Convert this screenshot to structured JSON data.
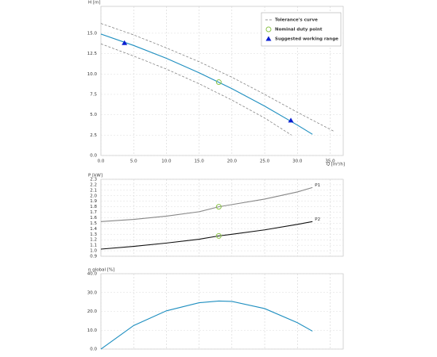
{
  "chart_data": [
    {
      "type": "line",
      "ylabel": "H [m]",
      "xlabel": "Q [m³/h]",
      "xlim": [
        0,
        37
      ],
      "ylim": [
        0,
        18.3
      ],
      "grid": true,
      "legend": "upper right",
      "xticks": [
        {
          "value": 0,
          "label": "0.0"
        },
        {
          "value": 5,
          "label": "5.0"
        },
        {
          "value": 10,
          "label": "10.0"
        },
        {
          "value": 15,
          "label": "15.0"
        },
        {
          "value": 20,
          "label": "20.0"
        },
        {
          "value": 25,
          "label": "25.0"
        },
        {
          "value": 30,
          "label": "30.0"
        },
        {
          "value": 35,
          "label": "35.0"
        }
      ],
      "yticks": [
        {
          "value": 0,
          "label": "0.0"
        },
        2.5,
        {
          "value": 5,
          "label": "5.0"
        },
        7.5,
        {
          "value": 10,
          "label": "10.0"
        },
        12.5,
        {
          "value": 15,
          "label": "15.0"
        }
      ],
      "series": [
        {
          "name": "Tolerance's curve",
          "color": "#777777",
          "dashed": true,
          "x": [
            0,
            5,
            10,
            15,
            20,
            25,
            30,
            35.5
          ],
          "values": [
            16.2,
            14.8,
            13.2,
            11.5,
            9.6,
            7.5,
            5.3,
            3.0
          ]
        },
        {
          "color": "#777777",
          "dashed": true,
          "x": [
            0,
            5,
            10,
            15,
            20,
            25,
            29.1
          ],
          "values": [
            13.7,
            12.2,
            10.6,
            8.8,
            6.8,
            4.6,
            2.5
          ]
        },
        {
          "color": "#1f8fc0",
          "x": [
            0,
            5,
            10,
            15,
            20,
            25,
            30,
            32.3
          ],
          "values": [
            14.9,
            13.5,
            11.92,
            10.15,
            8.2,
            6.06,
            3.73,
            2.6
          ]
        }
      ],
      "points": [
        {
          "name": "Nominal duty point",
          "marker": "circle",
          "color": "#8bc34a",
          "x": [
            18
          ],
          "values": [
            9.0
          ]
        },
        {
          "name": "Suggested working range",
          "marker": "triangle",
          "color": "#0a1fd0",
          "x": [
            3.6,
            29
          ],
          "values": [
            13.8,
            4.3
          ]
        }
      ]
    },
    {
      "type": "line",
      "ylabel": "P [kW]",
      "xlim": [
        0,
        37
      ],
      "ylim": [
        0.9,
        2.3
      ],
      "grid": true,
      "yticks": [
        {
          "value": 0.9,
          "label": "0.9"
        },
        {
          "value": 1,
          "label": "1.0"
        },
        1.1,
        1.2,
        1.3,
        1.4,
        1.5,
        1.6,
        1.7,
        1.8,
        1.9,
        {
          "value": 2,
          "label": "2.0"
        },
        2.1,
        2.2,
        2.3
      ],
      "series": [
        {
          "name": "P1",
          "color": "#888888",
          "x": [
            0,
            5,
            10,
            15,
            18,
            20,
            25,
            30,
            32.3
          ],
          "values": [
            1.53,
            1.57,
            1.63,
            1.71,
            1.8,
            1.84,
            1.94,
            2.07,
            2.15
          ]
        },
        {
          "name": "P2",
          "color": "#111111",
          "x": [
            0,
            5,
            10,
            15,
            18,
            20,
            25,
            30,
            32.3
          ],
          "values": [
            1.03,
            1.08,
            1.14,
            1.21,
            1.27,
            1.3,
            1.38,
            1.48,
            1.53
          ]
        }
      ],
      "points": [
        {
          "marker": "circle",
          "color": "#8bc34a",
          "x": [
            18,
            18
          ],
          "values": [
            1.8,
            1.27
          ]
        }
      ]
    },
    {
      "type": "line",
      "ylabel": "η global [%]",
      "xlim": [
        0,
        37
      ],
      "ylim": [
        0,
        40
      ],
      "grid": true,
      "yticks": [
        {
          "value": 0,
          "label": "0.0"
        },
        {
          "value": 10,
          "label": "10.0"
        },
        {
          "value": 20,
          "label": "20.0"
        },
        {
          "value": 30,
          "label": "30.0"
        },
        {
          "value": 40,
          "label": "40.0"
        }
      ],
      "series": [
        {
          "color": "#1f8fc0",
          "x": [
            0,
            5,
            10,
            15,
            18,
            20,
            25,
            30,
            32.3
          ],
          "values": [
            0,
            12.5,
            20.3,
            24.6,
            25.5,
            25.3,
            21.5,
            14,
            9.5
          ]
        }
      ]
    }
  ]
}
